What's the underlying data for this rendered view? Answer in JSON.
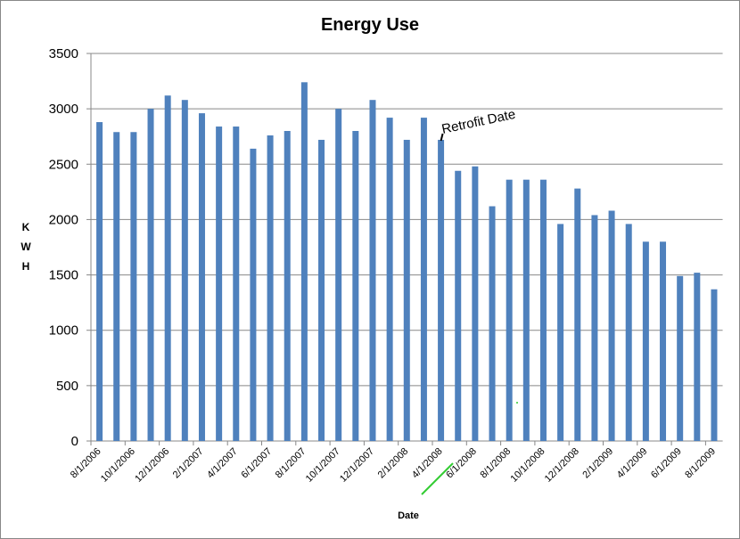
{
  "chart_data": {
    "type": "bar",
    "title": "Energy Use",
    "xlabel": "Date",
    "ylabel": "KWH",
    "annotation": "Retrofit Date",
    "categories": [
      "8/1/2006",
      null,
      "10/1/2006",
      null,
      "12/1/2006",
      null,
      "2/1/2007",
      null,
      "4/1/2007",
      null,
      "6/1/2007",
      null,
      "8/1/2007",
      null,
      "10/1/2007",
      null,
      "12/1/2007",
      null,
      "2/1/2008",
      null,
      "4/1/2008",
      null,
      "6/1/2008",
      null,
      "8/1/2008",
      null,
      "10/1/2008",
      null,
      "12/1/2008",
      null,
      "2/1/2009",
      null,
      "4/1/2009",
      null,
      "6/1/2009",
      null,
      "8/1/2009"
    ],
    "values": [
      2880,
      2790,
      2790,
      3000,
      3120,
      3080,
      2960,
      2840,
      2840,
      2640,
      2760,
      2800,
      3240,
      2720,
      3000,
      2800,
      3080,
      2920,
      2720,
      2920,
      2720,
      2440,
      2480,
      2120,
      2360,
      2360,
      2360,
      1960,
      2280,
      2040,
      2080,
      1960,
      1800,
      1800,
      1490,
      1520,
      1370
    ],
    "color": "#4f81bd",
    "ylim": [
      0,
      3500
    ],
    "yticks": [
      0,
      500,
      1000,
      1500,
      2000,
      2500,
      3000,
      3500
    ],
    "grid": true
  }
}
